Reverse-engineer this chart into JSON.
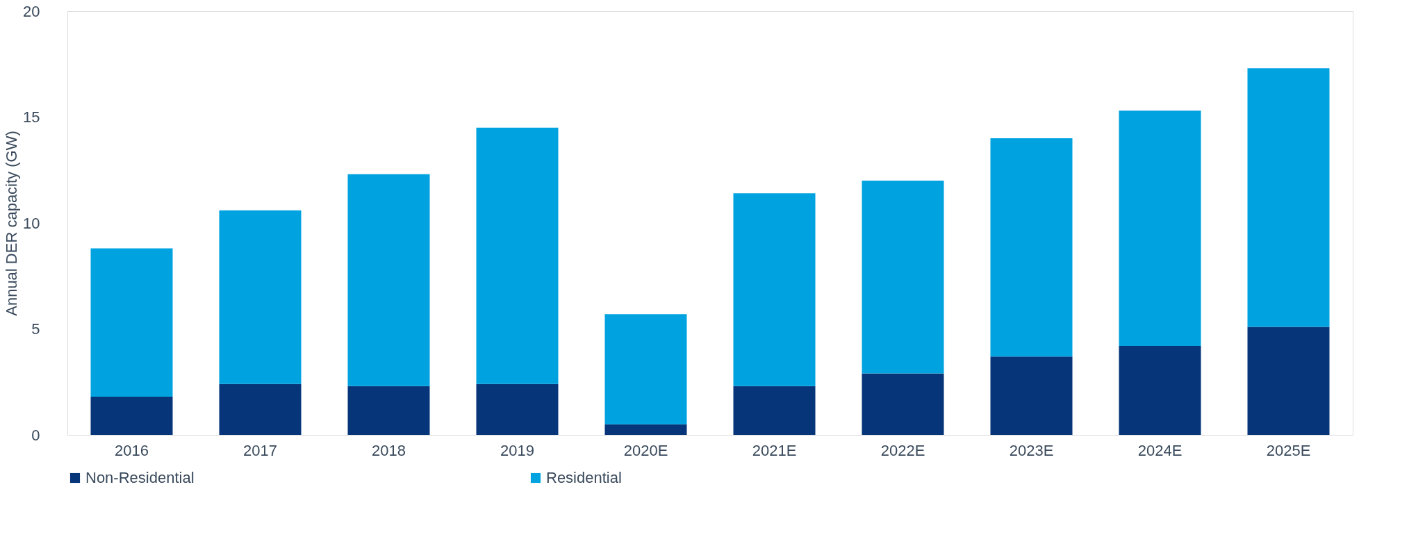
{
  "chart_data": {
    "type": "bar",
    "stacked": true,
    "ylabel": "Annual DER capacity (GW)",
    "categories": [
      "2016",
      "2017",
      "2018",
      "2019",
      "2020E",
      "2021E",
      "2022E",
      "2023E",
      "2024E",
      "2025E"
    ],
    "series": [
      {
        "name": "Non-Residential",
        "color": "#06357a",
        "values": [
          1.8,
          2.4,
          2.3,
          2.4,
          0.5,
          2.3,
          2.9,
          3.7,
          4.2,
          5.1
        ]
      },
      {
        "name": "Residential",
        "color": "#00a3e0",
        "values": [
          7.0,
          8.2,
          10.0,
          12.1,
          5.2,
          9.1,
          9.1,
          10.3,
          11.1,
          12.2
        ]
      }
    ],
    "ylim": [
      0,
      20
    ],
    "yticks": [
      0,
      5,
      10,
      15,
      20
    ],
    "grid": false,
    "legend": "bottom"
  }
}
